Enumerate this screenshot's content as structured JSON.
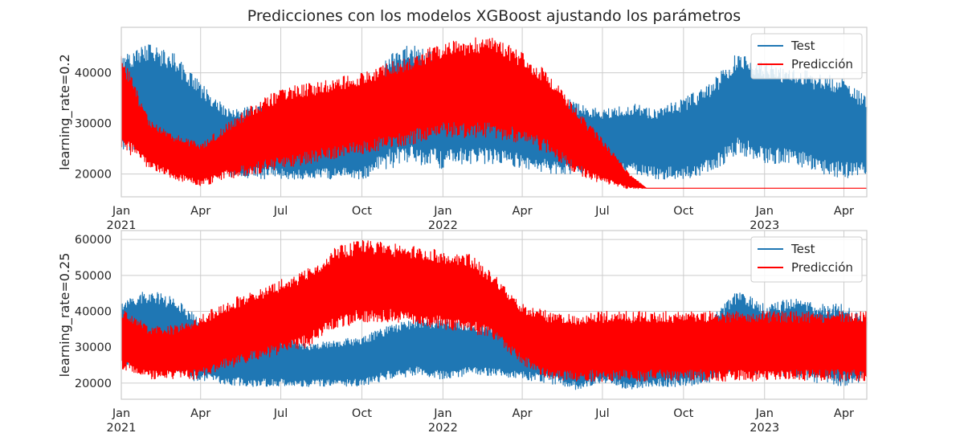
{
  "chart_data": [
    {
      "type": "line",
      "title": "Predicciones con los modelos XGBoost ajustando los parámetros",
      "ylabel": "learning_rate=0.2",
      "xlabel": "",
      "x_ticks": [
        {
          "date": "2021-01-01",
          "label": "Jan",
          "sublabel": "2021"
        },
        {
          "date": "2021-04-01",
          "label": "Apr",
          "sublabel": ""
        },
        {
          "date": "2021-07-01",
          "label": "Jul",
          "sublabel": ""
        },
        {
          "date": "2021-10-01",
          "label": "Oct",
          "sublabel": ""
        },
        {
          "date": "2022-01-01",
          "label": "Jan",
          "sublabel": "2022"
        },
        {
          "date": "2022-04-01",
          "label": "Apr",
          "sublabel": ""
        },
        {
          "date": "2022-07-01",
          "label": "Jul",
          "sublabel": ""
        },
        {
          "date": "2022-10-01",
          "label": "Oct",
          "sublabel": ""
        },
        {
          "date": "2023-01-01",
          "label": "Jan",
          "sublabel": "2023"
        },
        {
          "date": "2023-04-01",
          "label": "Apr",
          "sublabel": ""
        }
      ],
      "y_ticks": [
        20000,
        30000,
        40000
      ],
      "ylim": [
        15500,
        49000
      ],
      "xlim": [
        "2021-01-01",
        "2023-04-27"
      ],
      "grid": true,
      "legend": "top-right",
      "series": [
        {
          "name": "Test",
          "color": "#1f77b4",
          "envelope": [
            [
              "2021-01-01",
              25000,
              43000
            ],
            [
              "2021-02-01",
              24000,
              46000
            ],
            [
              "2021-03-01",
              22500,
              44000
            ],
            [
              "2021-04-01",
              20000,
              38000
            ],
            [
              "2021-05-01",
              19500,
              33000
            ],
            [
              "2021-06-01",
              19000,
              33500
            ],
            [
              "2021-07-01",
              19000,
              33000
            ],
            [
              "2021-08-01",
              19000,
              31000
            ],
            [
              "2021-09-01",
              19000,
              32000
            ],
            [
              "2021-10-01",
              19000,
              33000
            ],
            [
              "2021-11-01",
              21000,
              44000
            ],
            [
              "2021-12-01",
              22000,
              46000
            ],
            [
              "2022-01-01",
              21000,
              43000
            ],
            [
              "2022-02-01",
              22000,
              42000
            ],
            [
              "2022-03-01",
              22000,
              40000
            ],
            [
              "2022-04-01",
              21000,
              39000
            ],
            [
              "2022-05-01",
              20000,
              37000
            ],
            [
              "2022-06-01",
              20000,
              34000
            ],
            [
              "2022-07-01",
              20000,
              33000
            ],
            [
              "2022-08-01",
              20000,
              34000
            ],
            [
              "2022-09-01",
              19000,
              33000
            ],
            [
              "2022-10-01",
              19000,
              35000
            ],
            [
              "2022-11-01",
              20000,
              38000
            ],
            [
              "2022-12-01",
              24000,
              44000
            ],
            [
              "2023-01-01",
              22000,
              42000
            ],
            [
              "2023-02-01",
              22000,
              41000
            ],
            [
              "2023-03-01",
              20000,
              40000
            ],
            [
              "2023-04-01",
              19000,
              39000
            ],
            [
              "2023-04-27",
              20000,
              35000
            ]
          ]
        },
        {
          "name": "Predicción",
          "color": "#ff0000",
          "envelope": [
            [
              "2021-01-01",
              25000,
              44000
            ],
            [
              "2021-02-01",
              21000,
              31000
            ],
            [
              "2021-03-01",
              19000,
              28000
            ],
            [
              "2021-04-01",
              17500,
              26000
            ],
            [
              "2021-05-01",
              19000,
              30000
            ],
            [
              "2021-06-01",
              20000,
              34000
            ],
            [
              "2021-07-01",
              21000,
              37000
            ],
            [
              "2021-08-01",
              22000,
              38000
            ],
            [
              "2021-09-01",
              23000,
              39000
            ],
            [
              "2021-10-01",
              24000,
              40000
            ],
            [
              "2021-11-01",
              25000,
              42000
            ],
            [
              "2021-12-01",
              26000,
              44000
            ],
            [
              "2022-01-01",
              27000,
              46000
            ],
            [
              "2022-02-01",
              27000,
              47000
            ],
            [
              "2022-03-01",
              27000,
              47000
            ],
            [
              "2022-04-01",
              26000,
              44000
            ],
            [
              "2022-05-01",
              24000,
              40000
            ],
            [
              "2022-06-01",
              20000,
              33000
            ],
            [
              "2022-07-01",
              18000,
              27000
            ],
            [
              "2022-08-01",
              17000,
              20000
            ],
            [
              "2022-08-20",
              17200,
              17200
            ],
            [
              "2023-04-27",
              17200,
              17200
            ]
          ]
        }
      ]
    },
    {
      "type": "line",
      "title": "",
      "ylabel": "learning_rate=0.25",
      "xlabel": "",
      "x_ticks": [
        {
          "date": "2021-01-01",
          "label": "Jan",
          "sublabel": "2021"
        },
        {
          "date": "2021-04-01",
          "label": "Apr",
          "sublabel": ""
        },
        {
          "date": "2021-07-01",
          "label": "Jul",
          "sublabel": ""
        },
        {
          "date": "2021-10-01",
          "label": "Oct",
          "sublabel": ""
        },
        {
          "date": "2022-01-01",
          "label": "Jan",
          "sublabel": "2022"
        },
        {
          "date": "2022-04-01",
          "label": "Apr",
          "sublabel": ""
        },
        {
          "date": "2022-07-01",
          "label": "Jul",
          "sublabel": ""
        },
        {
          "date": "2022-10-01",
          "label": "Oct",
          "sublabel": ""
        },
        {
          "date": "2023-01-01",
          "label": "Jan",
          "sublabel": "2023"
        },
        {
          "date": "2023-04-01",
          "label": "Apr",
          "sublabel": ""
        }
      ],
      "y_ticks": [
        20000,
        30000,
        40000,
        50000,
        60000
      ],
      "ylim": [
        15500,
        62500
      ],
      "xlim": [
        "2021-01-01",
        "2023-04-27"
      ],
      "grid": true,
      "legend": "top-right",
      "series": [
        {
          "name": "Test",
          "color": "#1f77b4",
          "envelope": [
            [
              "2021-01-01",
              25000,
              43000
            ],
            [
              "2021-02-01",
              24000,
              46000
            ],
            [
              "2021-03-01",
              22500,
              44000
            ],
            [
              "2021-04-01",
              20000,
              38000
            ],
            [
              "2021-05-01",
              19500,
              33000
            ],
            [
              "2021-06-01",
              19000,
              33500
            ],
            [
              "2021-07-01",
              19000,
              33000
            ],
            [
              "2021-08-01",
              19000,
              31000
            ],
            [
              "2021-09-01",
              19000,
              32000
            ],
            [
              "2021-10-01",
              19000,
              33000
            ],
            [
              "2021-11-01",
              21000,
              36000
            ],
            [
              "2021-12-01",
              22000,
              38000
            ],
            [
              "2022-01-01",
              21000,
              38000
            ],
            [
              "2022-02-01",
              22000,
              37000
            ],
            [
              "2022-03-01",
              22000,
              36000
            ],
            [
              "2022-04-01",
              21000,
              35000
            ],
            [
              "2022-05-01",
              20000,
              36000
            ],
            [
              "2022-06-01",
              18000,
              34000
            ],
            [
              "2022-07-01",
              20000,
              33000
            ],
            [
              "2022-08-01",
              18000,
              34000
            ],
            [
              "2022-09-01",
              19000,
              33000
            ],
            [
              "2022-10-01",
              19000,
              35000
            ],
            [
              "2022-11-01",
              20000,
              38000
            ],
            [
              "2022-12-01",
              24000,
              46000
            ],
            [
              "2023-01-01",
              22000,
              42000
            ],
            [
              "2023-02-01",
              22000,
              44000
            ],
            [
              "2023-03-01",
              20000,
              43000
            ],
            [
              "2023-04-01",
              19000,
              42000
            ],
            [
              "2023-04-27",
              20000,
              38000
            ]
          ]
        },
        {
          "name": "Predicción",
          "color": "#ff0000",
          "envelope": [
            [
              "2021-01-01",
              24000,
              41000
            ],
            [
              "2021-02-01",
              21000,
              36000
            ],
            [
              "2021-03-01",
              21000,
              36000
            ],
            [
              "2021-04-01",
              21000,
              39000
            ],
            [
              "2021-05-01",
              24000,
              43000
            ],
            [
              "2021-06-01",
              26000,
              46000
            ],
            [
              "2021-07-01",
              28000,
              49000
            ],
            [
              "2021-08-01",
              30000,
              52000
            ],
            [
              "2021-09-01",
              35000,
              58000
            ],
            [
              "2021-10-01",
              37000,
              60000
            ],
            [
              "2021-11-01",
              37000,
              59000
            ],
            [
              "2021-12-01",
              36000,
              58000
            ],
            [
              "2022-01-01",
              35000,
              57000
            ],
            [
              "2022-02-01",
              34000,
              56000
            ],
            [
              "2022-03-01",
              32000,
              50000
            ],
            [
              "2022-04-01",
              25000,
              42000
            ],
            [
              "2022-05-01",
              21000,
              40000
            ],
            [
              "2022-06-01",
              20500,
              39000
            ],
            [
              "2022-07-01",
              20500,
              40000
            ],
            [
              "2022-08-01",
              20500,
              40000
            ],
            [
              "2022-09-01",
              20500,
              40000
            ],
            [
              "2022-10-01",
              20500,
              40000
            ],
            [
              "2022-11-01",
              20500,
              40000
            ],
            [
              "2022-12-01",
              20500,
              40000
            ],
            [
              "2023-01-01",
              20500,
              40000
            ],
            [
              "2023-02-01",
              20500,
              40000
            ],
            [
              "2023-03-01",
              20500,
              40000
            ],
            [
              "2023-04-01",
              20500,
              40000
            ],
            [
              "2023-04-27",
              20500,
              40000
            ]
          ]
        }
      ]
    }
  ]
}
